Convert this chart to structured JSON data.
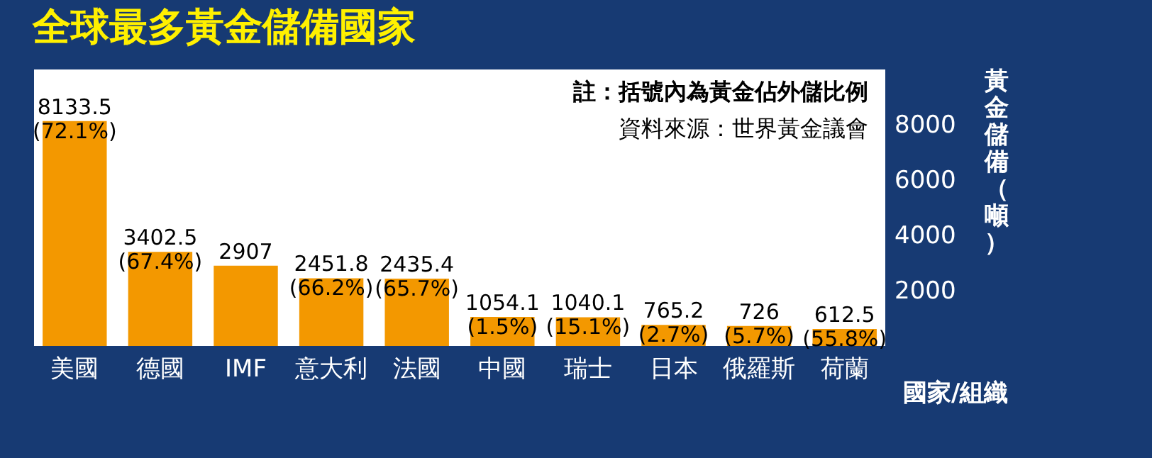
{
  "chart_data": {
    "type": "bar",
    "title": "全球最多黃金儲備國家",
    "xlabel": "國家/組織",
    "ylabel": "黃金儲備（噸）",
    "categories": [
      "美國",
      "德國",
      "IMF",
      "意大利",
      "法國",
      "中國",
      "瑞士",
      "日本",
      "俄羅斯",
      "荷蘭"
    ],
    "values": [
      8133.5,
      3402.5,
      2907,
      2451.8,
      2435.4,
      1054.1,
      1040.1,
      765.2,
      726,
      612.5
    ],
    "value_labels": [
      "8133.5\n(72.1%)",
      "3402.5\n(67.4%)",
      "2907",
      "2451.8\n(66.2%)",
      "2435.4\n(65.7%)",
      "1054.1\n(1.5%)",
      "1040.1\n(15.1%)",
      "765.2\n(2.7%)",
      "726\n(5.7%)",
      "612.5\n(55.8%)"
    ],
    "color": "#f39800",
    "ylim": [
      0,
      10000
    ],
    "yticks": [
      2000,
      4000,
      6000,
      8000
    ],
    "annotations": [
      "註：括號內為黃金佔外儲比例",
      "資料來源：世界黃金議會"
    ],
    "grid": false
  }
}
